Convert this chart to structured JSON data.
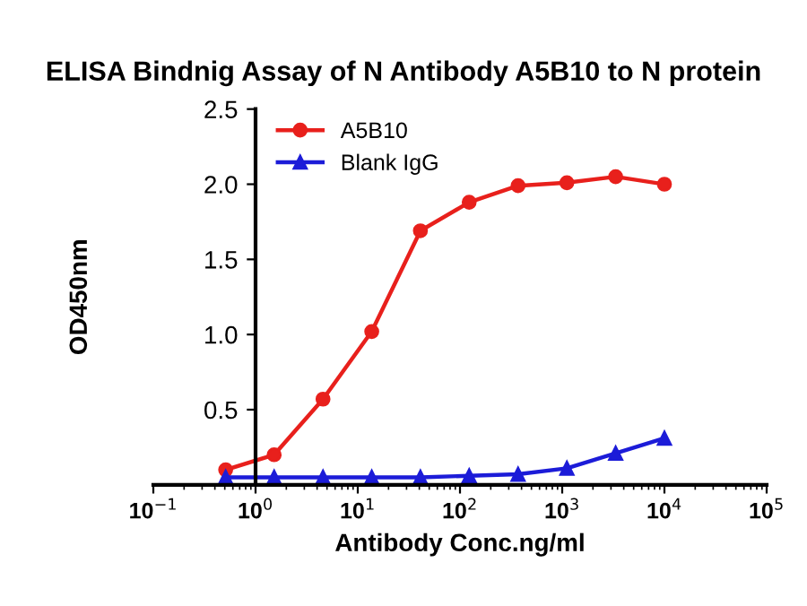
{
  "chart_data": {
    "type": "line",
    "title": "ELISA Bindnig Assay of N Antibody A5B10 to N protein",
    "xlabel": "Antibody Conc.ng/ml",
    "ylabel": "OD450nm",
    "log": "x",
    "x": [
      0.51,
      1.52,
      4.57,
      13.7,
      41,
      123,
      370,
      1111,
      3333,
      10000
    ],
    "series": [
      {
        "name": "A5B10",
        "color": "#e8201c",
        "marker": "circle",
        "values": [
          0.1,
          0.2,
          0.57,
          1.02,
          1.69,
          1.88,
          1.99,
          2.01,
          2.05,
          2.0
        ]
      },
      {
        "name": "Blank IgG",
        "color": "#1c1cd8",
        "marker": "triangle",
        "values": [
          0.05,
          0.05,
          0.05,
          0.05,
          0.05,
          0.06,
          0.07,
          0.11,
          0.21,
          0.31
        ]
      }
    ],
    "xlim": [
      0.1,
      100000
    ],
    "xticks": [
      {
        "value": 0.1,
        "label": "10$^{−1}$"
      },
      {
        "value": 1,
        "label": "10$^{0}$"
      },
      {
        "value": 10,
        "label": "10$^{1}$"
      },
      {
        "value": 100,
        "label": "10$^{2}$"
      },
      {
        "value": 1000,
        "label": "10$^{3}$"
      },
      {
        "value": 10000,
        "label": "10$^{4}$"
      },
      {
        "value": 100000,
        "label": "10$^{5}$"
      }
    ],
    "ylim": [
      0,
      2.5
    ],
    "yticks": [
      0.5,
      {
        "value": 1,
        "label": "1.0"
      },
      1.5,
      {
        "value": 2,
        "label": "2.0"
      },
      2.5
    ],
    "grid": false,
    "legend": "top left"
  }
}
